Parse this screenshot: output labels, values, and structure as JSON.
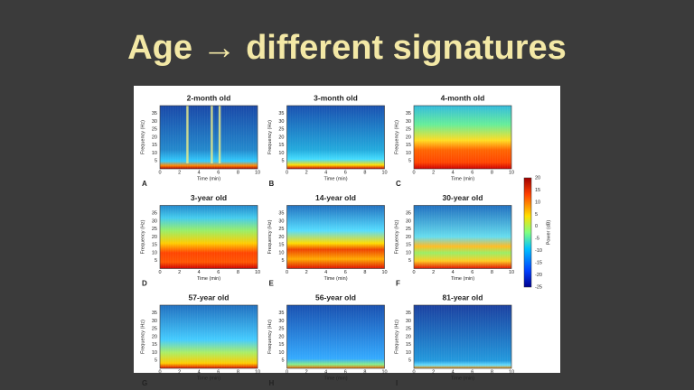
{
  "title": "Age → different signatures",
  "panels": [
    {
      "letter": "A",
      "title": "2-month old"
    },
    {
      "letter": "B",
      "title": "3-month old"
    },
    {
      "letter": "C",
      "title": "4-month old"
    },
    {
      "letter": "D",
      "title": "3-year old"
    },
    {
      "letter": "E",
      "title": "14-year old"
    },
    {
      "letter": "F",
      "title": "30-year old"
    },
    {
      "letter": "G",
      "title": "57-year old"
    },
    {
      "letter": "H",
      "title": "56-year old"
    },
    {
      "letter": "I",
      "title": "81-year old"
    }
  ],
  "x_label": "Time (min)",
  "y_label": "Frequency (Hz)",
  "xticks": [
    0,
    2,
    4,
    6,
    8,
    10
  ],
  "yticks": [
    5,
    10,
    15,
    20,
    25,
    30,
    35
  ],
  "colorbar": {
    "label": "Power (dB)",
    "ticks": [
      20,
      15,
      10,
      5,
      0,
      -5,
      -10,
      -15,
      -20,
      -25
    ]
  }
}
